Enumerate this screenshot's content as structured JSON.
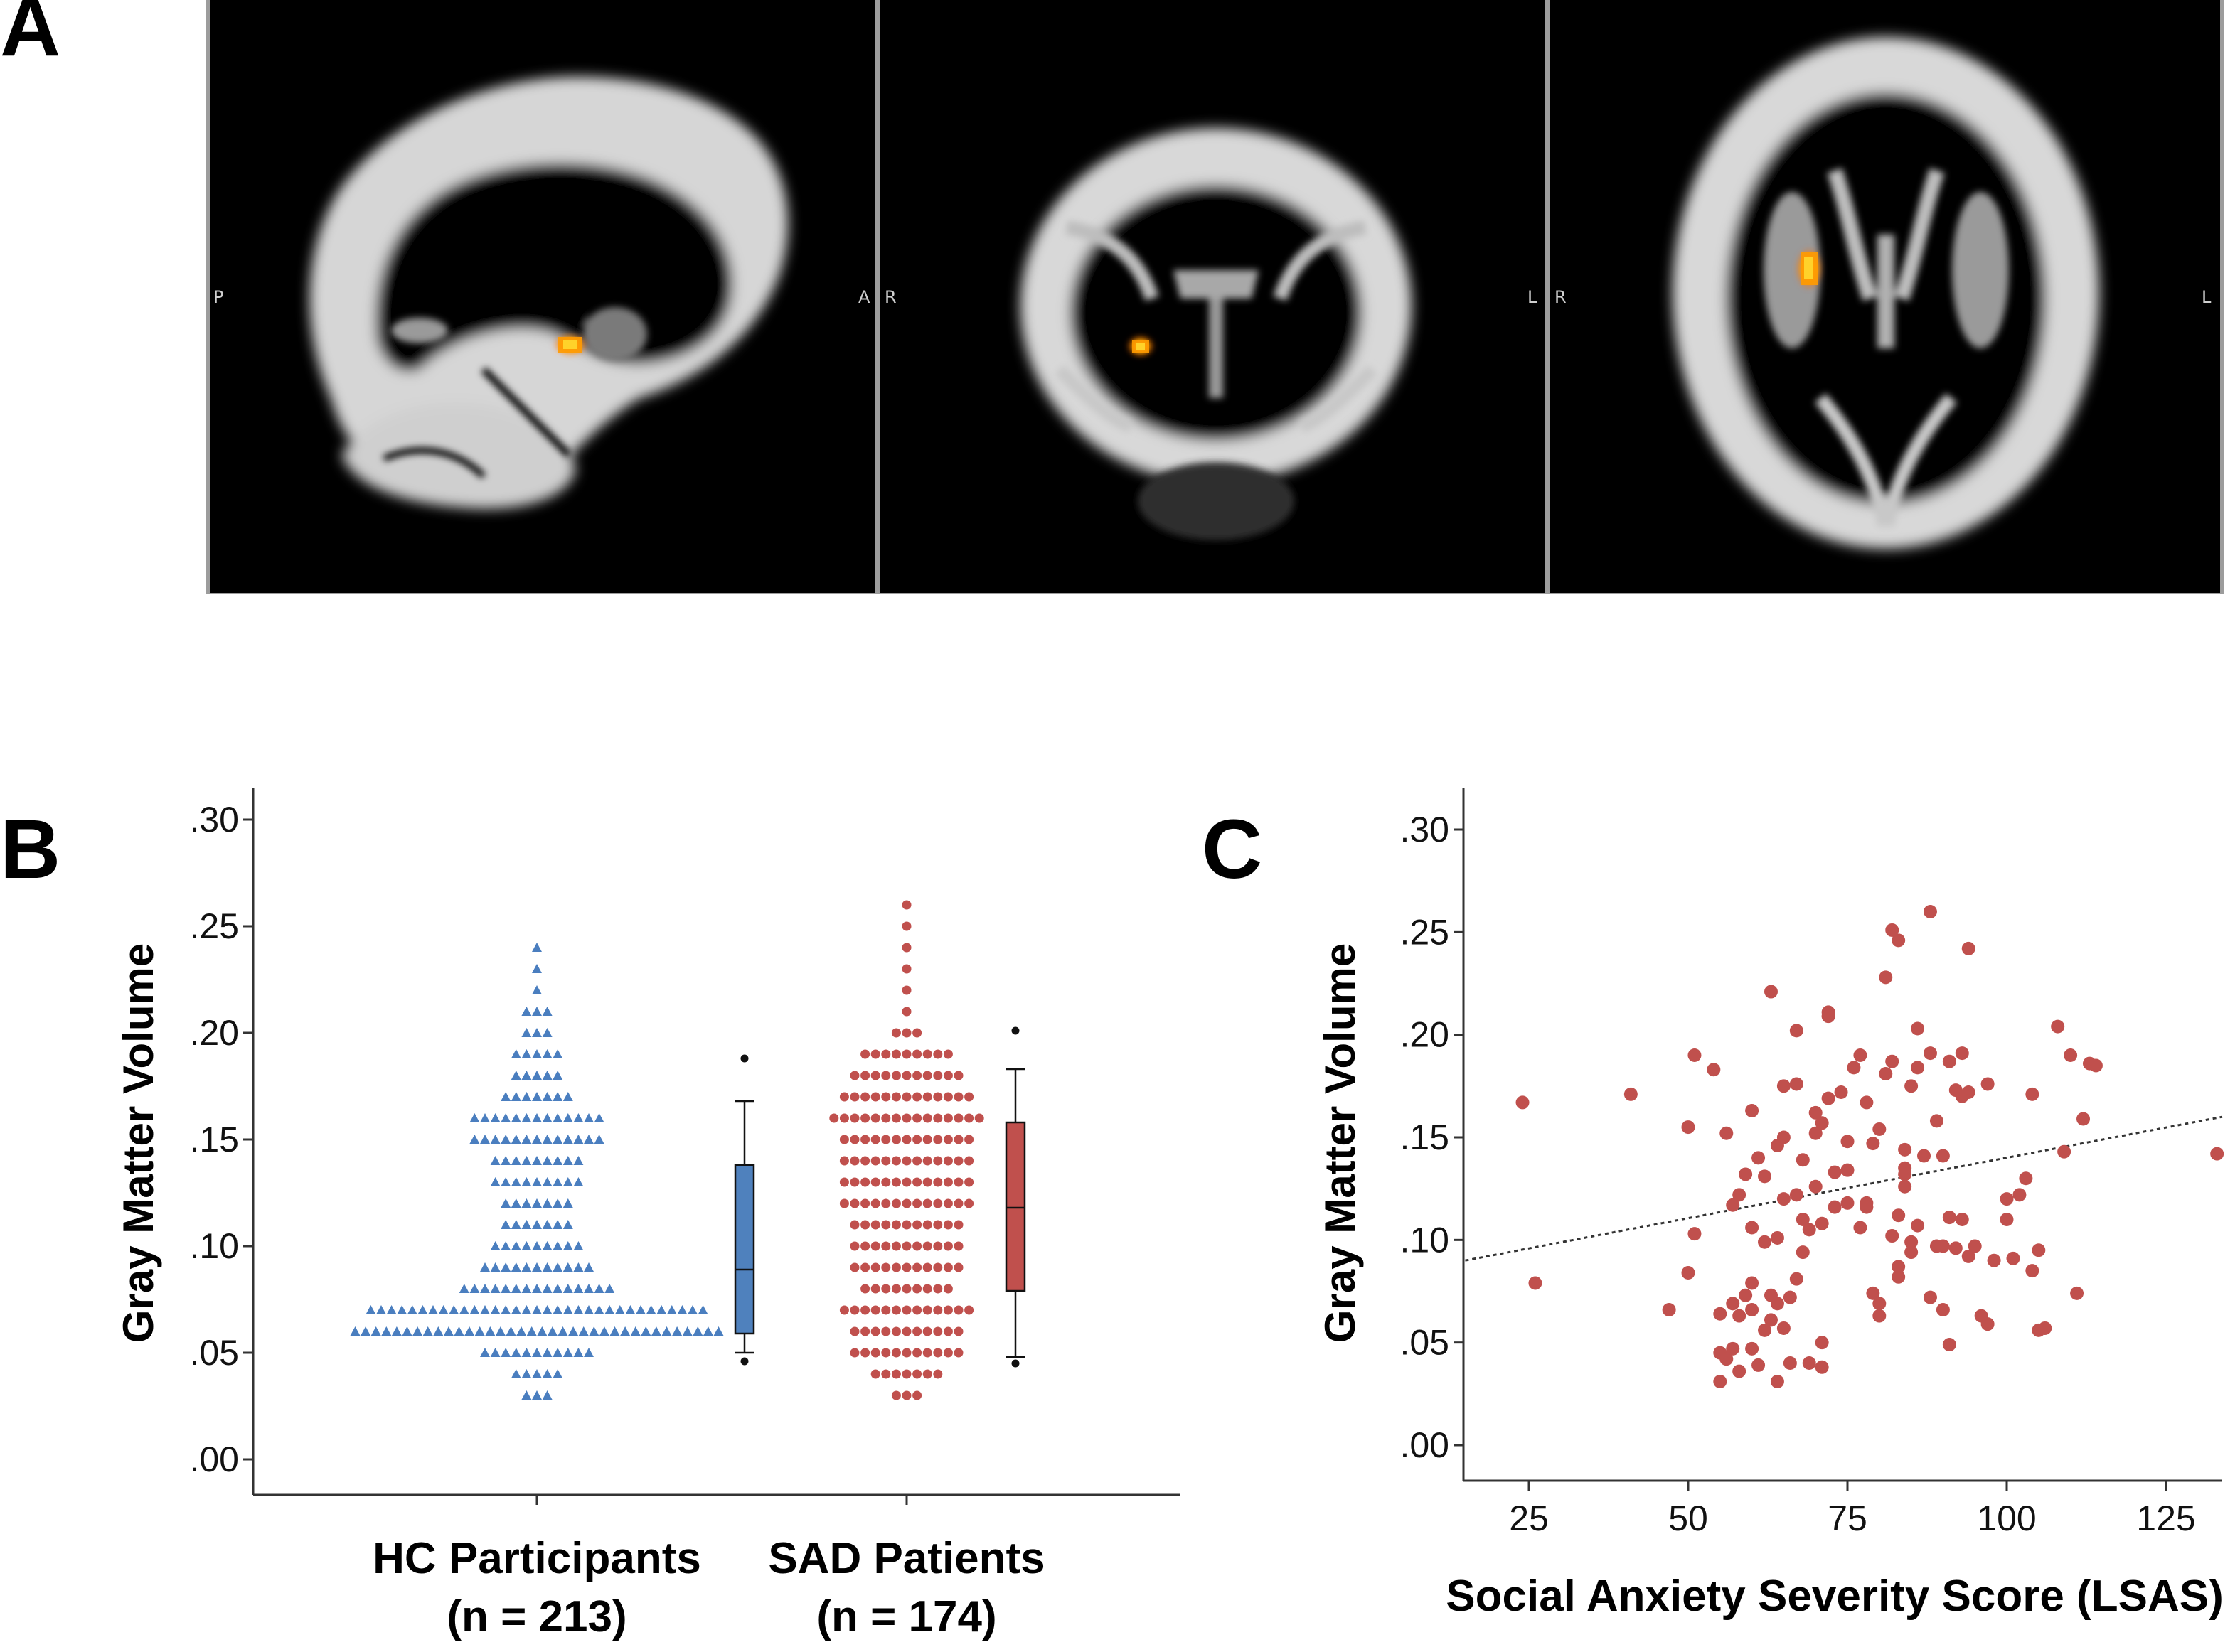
{
  "panels": {
    "a": {
      "letter": "A",
      "views": [
        {
          "name": "sagittal",
          "left_label": "P",
          "right_label": "A"
        },
        {
          "name": "coronal",
          "left_label": "R",
          "right_label": "L"
        },
        {
          "name": "axial",
          "left_label": "R",
          "right_label": "L"
        }
      ]
    },
    "b": {
      "letter": "B"
    },
    "c": {
      "letter": "C"
    }
  },
  "colors": {
    "hc": "#4a7ebf",
    "sad": "#c0504d",
    "box_hc": "#4f81bd",
    "box_sad": "#c0504d",
    "highlight": "#ff8a00"
  },
  "chart_data": [
    {
      "id": "b",
      "type": "dot_box",
      "ylabel": "Gray Matter Volume",
      "ylim": [
        0,
        0.3
      ],
      "yticks": [
        {
          "value": 0.0,
          "label": ".00"
        },
        {
          "value": 0.05,
          "label": ".05"
        },
        {
          "value": 0.1,
          "label": ".10"
        },
        {
          "value": 0.15,
          "label": ".15"
        },
        {
          "value": 0.2,
          "label": ".20"
        },
        {
          "value": 0.25,
          "label": ".25"
        },
        {
          "value": 0.3,
          "label": ".30"
        }
      ],
      "groups": [
        {
          "name": "HC Participants",
          "n_label": "(n = 213)",
          "marker": "triangle",
          "bins": [
            [
              0.03,
              3
            ],
            [
              0.04,
              5
            ],
            [
              0.05,
              11
            ],
            [
              0.06,
              36
            ],
            [
              0.07,
              33
            ],
            [
              0.08,
              15
            ],
            [
              0.09,
              11
            ],
            [
              0.1,
              9
            ],
            [
              0.11,
              7
            ],
            [
              0.12,
              7
            ],
            [
              0.13,
              9
            ],
            [
              0.14,
              9
            ],
            [
              0.15,
              13
            ],
            [
              0.16,
              13
            ],
            [
              0.17,
              7
            ],
            [
              0.18,
              5
            ],
            [
              0.19,
              5
            ],
            [
              0.2,
              3
            ],
            [
              0.21,
              3
            ],
            [
              0.22,
              1
            ],
            [
              0.23,
              1
            ],
            [
              0.24,
              1
            ]
          ],
          "box": {
            "whisker_low": 0.05,
            "q1": 0.059,
            "median": 0.089,
            "q3": 0.138,
            "whisker_high": 0.168,
            "outliers": [
              0.046,
              0.188
            ]
          }
        },
        {
          "name": "SAD Patients",
          "n_label": "(n = 174)",
          "marker": "circle",
          "bins": [
            [
              0.03,
              3
            ],
            [
              0.04,
              7
            ],
            [
              0.05,
              11
            ],
            [
              0.06,
              11
            ],
            [
              0.07,
              13
            ],
            [
              0.08,
              9
            ],
            [
              0.09,
              11
            ],
            [
              0.1,
              11
            ],
            [
              0.11,
              11
            ],
            [
              0.12,
              13
            ],
            [
              0.13,
              13
            ],
            [
              0.14,
              13
            ],
            [
              0.15,
              13
            ],
            [
              0.16,
              15
            ],
            [
              0.17,
              13
            ],
            [
              0.18,
              11
            ],
            [
              0.19,
              9
            ],
            [
              0.2,
              3
            ],
            [
              0.21,
              1
            ],
            [
              0.22,
              1
            ],
            [
              0.23,
              1
            ],
            [
              0.24,
              1
            ],
            [
              0.25,
              1
            ],
            [
              0.26,
              1
            ]
          ],
          "box": {
            "whisker_low": 0.048,
            "q1": 0.079,
            "median": 0.118,
            "q3": 0.158,
            "whisker_high": 0.183,
            "outliers": [
              0.045,
              0.201
            ]
          }
        }
      ]
    },
    {
      "id": "c",
      "type": "scatter",
      "xlabel": "Social Anxiety Severity Score (LSAS)",
      "ylabel": "Gray Matter Volume",
      "xlim": [
        15,
        138
      ],
      "ylim": [
        -0.005,
        0.31
      ],
      "xticks": [
        {
          "value": 25,
          "label": "25"
        },
        {
          "value": 50,
          "label": "50"
        },
        {
          "value": 75,
          "label": "75"
        },
        {
          "value": 100,
          "label": "100"
        },
        {
          "value": 125,
          "label": "125"
        }
      ],
      "yticks": [
        {
          "value": 0.0,
          "label": ".00"
        },
        {
          "value": 0.05,
          "label": ".05"
        },
        {
          "value": 0.1,
          "label": ".10"
        },
        {
          "value": 0.15,
          "label": ".15"
        },
        {
          "value": 0.2,
          "label": ".20"
        },
        {
          "value": 0.25,
          "label": ".25"
        },
        {
          "value": 0.3,
          "label": ".30"
        }
      ],
      "fit_line": {
        "x": [
          15,
          138
        ],
        "y": [
          0.09,
          0.16
        ]
      },
      "points": [
        [
          24,
          0.167
        ],
        [
          26,
          0.079
        ],
        [
          41,
          0.171
        ],
        [
          47,
          0.066
        ],
        [
          50,
          0.084
        ],
        [
          50,
          0.155
        ],
        [
          51,
          0.19
        ],
        [
          51,
          0.103
        ],
        [
          54,
          0.183
        ],
        [
          55,
          0.045
        ],
        [
          55,
          0.031
        ],
        [
          55,
          0.064
        ],
        [
          56,
          0.152
        ],
        [
          56,
          0.042
        ],
        [
          57,
          0.117
        ],
        [
          57,
          0.069
        ],
        [
          57,
          0.047
        ],
        [
          58,
          0.122
        ],
        [
          58,
          0.036
        ],
        [
          58,
          0.063
        ],
        [
          59,
          0.073
        ],
        [
          59,
          0.132
        ],
        [
          60,
          0.106
        ],
        [
          60,
          0.163
        ],
        [
          60,
          0.079
        ],
        [
          60,
          0.066
        ],
        [
          60,
          0.047
        ],
        [
          61,
          0.14
        ],
        [
          61,
          0.039
        ],
        [
          62,
          0.099
        ],
        [
          62,
          0.131
        ],
        [
          62,
          0.056
        ],
        [
          63,
          0.221
        ],
        [
          63,
          0.073
        ],
        [
          63,
          0.061
        ],
        [
          64,
          0.069
        ],
        [
          64,
          0.146
        ],
        [
          64,
          0.101
        ],
        [
          64,
          0.031
        ],
        [
          65,
          0.12
        ],
        [
          65,
          0.15
        ],
        [
          65,
          0.175
        ],
        [
          65,
          0.057
        ],
        [
          66,
          0.072
        ],
        [
          66,
          0.04
        ],
        [
          67,
          0.202
        ],
        [
          67,
          0.081
        ],
        [
          67,
          0.122
        ],
        [
          67,
          0.176
        ],
        [
          68,
          0.139
        ],
        [
          68,
          0.094
        ],
        [
          68,
          0.11
        ],
        [
          69,
          0.105
        ],
        [
          69,
          0.04
        ],
        [
          70,
          0.126
        ],
        [
          70,
          0.152
        ],
        [
          70,
          0.162
        ],
        [
          71,
          0.108
        ],
        [
          71,
          0.157
        ],
        [
          71,
          0.05
        ],
        [
          71,
          0.038
        ],
        [
          72,
          0.169
        ],
        [
          72,
          0.209
        ],
        [
          72,
          0.211
        ],
        [
          73,
          0.116
        ],
        [
          73,
          0.133
        ],
        [
          74,
          0.172
        ],
        [
          75,
          0.134
        ],
        [
          75,
          0.118
        ],
        [
          75,
          0.148
        ],
        [
          76,
          0.184
        ],
        [
          77,
          0.106
        ],
        [
          77,
          0.19
        ],
        [
          78,
          0.118
        ],
        [
          78,
          0.167
        ],
        [
          78,
          0.116
        ],
        [
          79,
          0.074
        ],
        [
          79,
          0.147
        ],
        [
          80,
          0.069
        ],
        [
          80,
          0.063
        ],
        [
          80,
          0.154
        ],
        [
          81,
          0.181
        ],
        [
          81,
          0.228
        ],
        [
          82,
          0.102
        ],
        [
          82,
          0.187
        ],
        [
          82,
          0.251
        ],
        [
          83,
          0.246
        ],
        [
          83,
          0.112
        ],
        [
          83,
          0.082
        ],
        [
          83,
          0.087
        ],
        [
          84,
          0.135
        ],
        [
          84,
          0.144
        ],
        [
          84,
          0.132
        ],
        [
          84,
          0.126
        ],
        [
          85,
          0.094
        ],
        [
          85,
          0.175
        ],
        [
          85,
          0.099
        ],
        [
          86,
          0.203
        ],
        [
          86,
          0.107
        ],
        [
          86,
          0.184
        ],
        [
          87,
          0.141
        ],
        [
          88,
          0.26
        ],
        [
          88,
          0.072
        ],
        [
          88,
          0.191
        ],
        [
          89,
          0.097
        ],
        [
          89,
          0.158
        ],
        [
          90,
          0.066
        ],
        [
          90,
          0.097
        ],
        [
          90,
          0.141
        ],
        [
          91,
          0.187
        ],
        [
          91,
          0.049
        ],
        [
          91,
          0.111
        ],
        [
          92,
          0.173
        ],
        [
          92,
          0.096
        ],
        [
          93,
          0.17
        ],
        [
          93,
          0.191
        ],
        [
          93,
          0.11
        ],
        [
          94,
          0.242
        ],
        [
          94,
          0.172
        ],
        [
          94,
          0.092
        ],
        [
          95,
          0.097
        ],
        [
          96,
          0.063
        ],
        [
          97,
          0.059
        ],
        [
          97,
          0.176
        ],
        [
          98,
          0.09
        ],
        [
          100,
          0.12
        ],
        [
          100,
          0.11
        ],
        [
          101,
          0.091
        ],
        [
          102,
          0.122
        ],
        [
          103,
          0.13
        ],
        [
          104,
          0.085
        ],
        [
          104,
          0.171
        ],
        [
          105,
          0.095
        ],
        [
          105,
          0.056
        ],
        [
          106,
          0.057
        ],
        [
          108,
          0.204
        ],
        [
          109,
          0.143
        ],
        [
          110,
          0.19
        ],
        [
          111,
          0.074
        ],
        [
          112,
          0.159
        ],
        [
          113,
          0.186
        ],
        [
          114,
          0.185
        ],
        [
          133,
          0.142
        ]
      ]
    }
  ]
}
